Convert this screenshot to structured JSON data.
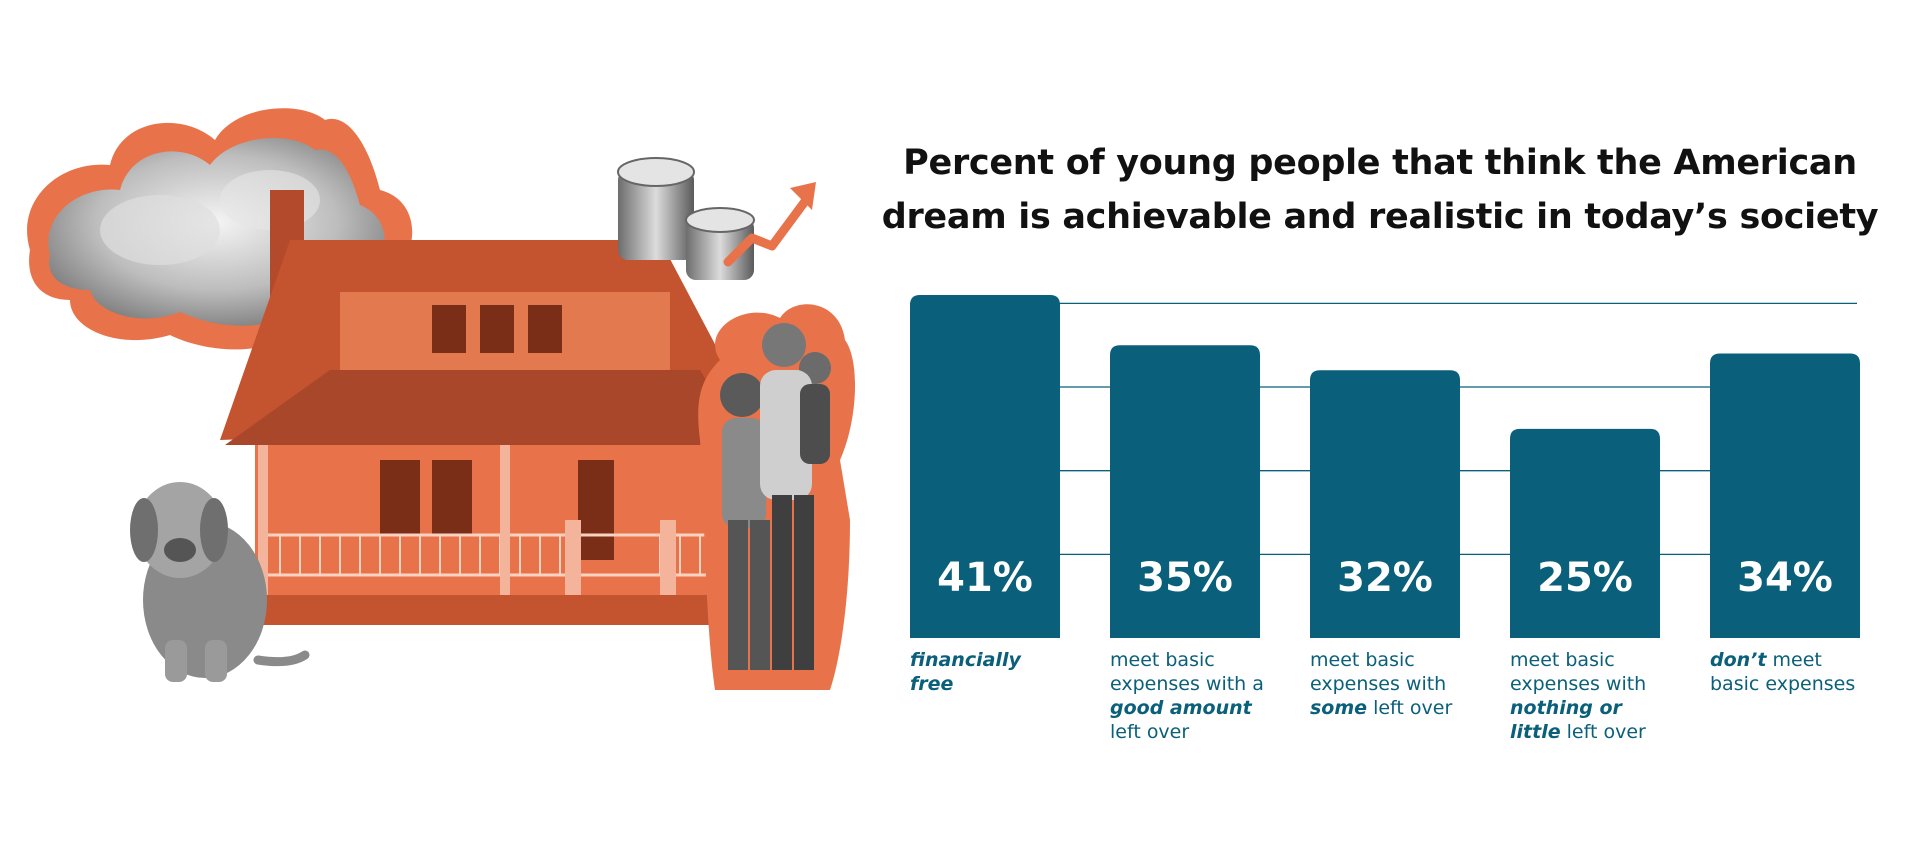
{
  "chart_data": {
    "type": "bar",
    "title_lines": [
      "Percent of young people that think the American",
      "dream is achievable and realistic in today’s society"
    ],
    "categories": [
      [
        {
          "t": "financially ",
          "em": true
        },
        {
          "t": "free",
          "em": true
        }
      ],
      [
        {
          "t": "meet basic expenses with a ",
          "em": false
        },
        {
          "t": "good amount",
          "em": true
        },
        {
          "t": " left over",
          "em": false
        }
      ],
      [
        {
          "t": "meet basic expenses with ",
          "em": false
        },
        {
          "t": "some",
          "em": true
        },
        {
          "t": " left over",
          "em": false
        }
      ],
      [
        {
          "t": "meet basic expenses with ",
          "em": false
        },
        {
          "t": "nothing or little",
          "em": true
        },
        {
          "t": " left over",
          "em": false
        }
      ],
      [
        {
          "t": "don’t",
          "em": true
        },
        {
          "t": " meet basic expenses",
          "em": false
        }
      ]
    ],
    "values": [
      41,
      35,
      32,
      25,
      34
    ],
    "value_labels": [
      "41%",
      "35%",
      "32%",
      "25%",
      "34%"
    ],
    "ylim": [
      0,
      41
    ],
    "grid": true,
    "gridline_values": [
      10,
      20,
      30,
      40
    ],
    "bar_color": "#0a5f7a",
    "value_label_color": "#ffffff",
    "category_label_color": "#0a5f7a"
  },
  "illustration": {
    "accent_color": "#e8734a",
    "elements": [
      "cloud",
      "house",
      "coin-stacks",
      "up-arrow-icon",
      "dog",
      "family"
    ]
  }
}
